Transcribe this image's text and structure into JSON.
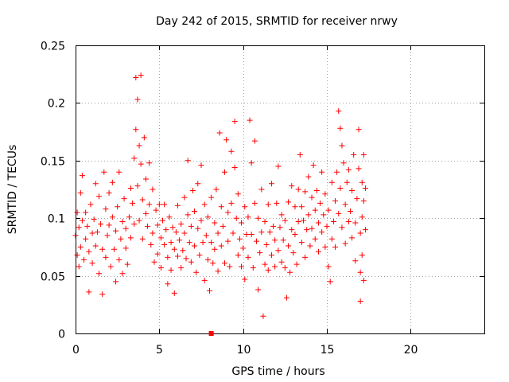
{
  "chart_data": {
    "type": "scatter",
    "title": "Day 242 of 2015, SRMTID for receiver nrwy",
    "xlabel": "GPS time / hours",
    "ylabel": "SRMTID / TECUs",
    "xlim": [
      0,
      24.4
    ],
    "ylim": [
      0,
      0.25
    ],
    "x_ticks": [
      0,
      5,
      10,
      15,
      20
    ],
    "x_tick_labels": [
      "0",
      "5",
      "10",
      "15",
      "20"
    ],
    "y_ticks": [
      0,
      0.05,
      0.1,
      0.15,
      0.2,
      0.25
    ],
    "y_tick_labels": [
      "0",
      "0.05",
      "0.1",
      "0.15",
      "0.2",
      "0.25"
    ],
    "grid": true,
    "marker": "plus",
    "series": [
      {
        "name": "SRMTID",
        "color": "#ff0000",
        "points": [
          [
            0.0,
            0.085
          ],
          [
            0.1,
            0.105
          ],
          [
            0.1,
            0.068
          ],
          [
            0.2,
            0.092
          ],
          [
            0.2,
            0.058
          ],
          [
            0.3,
            0.122
          ],
          [
            0.3,
            0.075
          ],
          [
            0.4,
            0.137
          ],
          [
            0.4,
            0.098
          ],
          [
            0.5,
            0.064
          ],
          [
            0.6,
            0.105
          ],
          [
            0.6,
            0.082
          ],
          [
            0.7,
            0.093
          ],
          [
            0.8,
            0.071
          ],
          [
            0.8,
            0.036
          ],
          [
            0.9,
            0.112
          ],
          [
            1.0,
            0.087
          ],
          [
            1.0,
            0.061
          ],
          [
            1.1,
            0.099
          ],
          [
            1.2,
            0.13
          ],
          [
            1.2,
            0.076
          ],
          [
            1.3,
            0.088
          ],
          [
            1.4,
            0.052
          ],
          [
            1.4,
            0.119
          ],
          [
            1.5,
            0.095
          ],
          [
            1.6,
            0.034
          ],
          [
            1.6,
            0.073
          ],
          [
            1.7,
            0.14
          ],
          [
            1.8,
            0.108
          ],
          [
            1.8,
            0.066
          ],
          [
            1.9,
            0.085
          ],
          [
            2.0,
            0.122
          ],
          [
            2.0,
            0.094
          ],
          [
            2.1,
            0.058
          ],
          [
            2.2,
            0.131
          ],
          [
            2.2,
            0.101
          ],
          [
            2.3,
            0.073
          ],
          [
            2.4,
            0.045
          ],
          [
            2.4,
            0.089
          ],
          [
            2.5,
            0.11
          ],
          [
            2.6,
            0.14
          ],
          [
            2.6,
            0.064
          ],
          [
            2.7,
            0.082
          ],
          [
            2.8,
            0.097
          ],
          [
            2.8,
            0.052
          ],
          [
            2.9,
            0.117
          ],
          [
            3.0,
            0.074
          ],
          [
            3.0,
            0.091
          ],
          [
            3.1,
            0.06
          ],
          [
            3.2,
            0.101
          ],
          [
            3.3,
            0.126
          ],
          [
            3.3,
            0.083
          ],
          [
            3.4,
            0.113
          ],
          [
            3.5,
            0.152
          ],
          [
            3.5,
            0.095
          ],
          [
            3.6,
            0.222
          ],
          [
            3.6,
            0.177
          ],
          [
            3.7,
            0.203
          ],
          [
            3.7,
            0.128
          ],
          [
            3.8,
            0.163
          ],
          [
            3.8,
            0.098
          ],
          [
            3.9,
            0.224
          ],
          [
            3.9,
            0.147
          ],
          [
            4.0,
            0.116
          ],
          [
            4.0,
            0.082
          ],
          [
            4.1,
            0.17
          ],
          [
            4.2,
            0.134
          ],
          [
            4.2,
            0.104
          ],
          [
            4.3,
            0.093
          ],
          [
            4.4,
            0.148
          ],
          [
            4.4,
            0.112
          ],
          [
            4.5,
            0.077
          ],
          [
            4.6,
            0.125
          ],
          [
            4.6,
            0.087
          ],
          [
            4.7,
            0.062
          ],
          [
            4.8,
            0.107
          ],
          [
            4.9,
            0.094
          ],
          [
            4.9,
            0.069
          ],
          [
            5.0,
            0.112
          ],
          [
            5.1,
            0.083
          ],
          [
            5.1,
            0.057
          ],
          [
            5.2,
            0.098
          ],
          [
            5.3,
            0.077
          ],
          [
            5.3,
            0.112
          ],
          [
            5.4,
            0.09
          ],
          [
            5.5,
            0.066
          ],
          [
            5.5,
            0.043
          ],
          [
            5.6,
            0.101
          ],
          [
            5.7,
            0.079
          ],
          [
            5.7,
            0.055
          ],
          [
            5.8,
            0.092
          ],
          [
            5.9,
            0.073
          ],
          [
            5.9,
            0.035
          ],
          [
            6.0,
            0.088
          ],
          [
            6.1,
            0.067
          ],
          [
            6.1,
            0.111
          ],
          [
            6.2,
            0.081
          ],
          [
            6.3,
            0.057
          ],
          [
            6.3,
            0.095
          ],
          [
            6.4,
            0.072
          ],
          [
            6.5,
            0.118
          ],
          [
            6.5,
            0.087
          ],
          [
            6.6,
            0.065
          ],
          [
            6.7,
            0.15
          ],
          [
            6.7,
            0.103
          ],
          [
            6.8,
            0.079
          ],
          [
            6.9,
            0.062
          ],
          [
            6.9,
            0.093
          ],
          [
            7.0,
            0.124
          ],
          [
            7.1,
            0.076
          ],
          [
            7.1,
            0.106
          ],
          [
            7.2,
            0.053
          ],
          [
            7.3,
            0.091
          ],
          [
            7.3,
            0.13
          ],
          [
            7.4,
            0.068
          ],
          [
            7.5,
            0.146
          ],
          [
            7.5,
            0.098
          ],
          [
            7.6,
            0.079
          ],
          [
            7.7,
            0.046
          ],
          [
            7.7,
            0.112
          ],
          [
            7.8,
            0.085
          ],
          [
            7.9,
            0.064
          ],
          [
            7.9,
            0.101
          ],
          [
            8.0,
            0.037
          ],
          [
            8.1,
            0.079
          ],
          [
            8.1,
            0.118
          ],
          [
            8.2,
            0.061
          ],
          [
            8.3,
            0.096
          ],
          [
            8.3,
            0.073
          ],
          [
            8.4,
            0.125
          ],
          [
            8.5,
            0.087
          ],
          [
            8.5,
            0.054
          ],
          [
            8.6,
            0.174
          ],
          [
            8.7,
            0.11
          ],
          [
            8.7,
            0.076
          ],
          [
            8.8,
            0.093
          ],
          [
            8.9,
            0.061
          ],
          [
            8.9,
            0.14
          ],
          [
            9.0,
            0.168
          ],
          [
            9.1,
            0.105
          ],
          [
            9.1,
            0.08
          ],
          [
            9.2,
            0.058
          ],
          [
            9.3,
            0.158
          ],
          [
            9.3,
            0.113
          ],
          [
            9.4,
            0.087
          ],
          [
            9.5,
            0.184
          ],
          [
            9.5,
            0.144
          ],
          [
            9.6,
            0.1
          ],
          [
            9.7,
            0.068
          ],
          [
            9.7,
            0.121
          ],
          [
            9.8,
            0.082
          ],
          [
            9.9,
            0.058
          ],
          [
            9.9,
            0.096
          ],
          [
            10.0,
            0.074
          ],
          [
            10.1,
            0.11
          ],
          [
            10.1,
            0.047
          ],
          [
            10.2,
            0.086
          ],
          [
            10.3,
            0.066
          ],
          [
            10.3,
            0.101
          ],
          [
            10.4,
            0.185
          ],
          [
            10.5,
            0.148
          ],
          [
            10.5,
            0.086
          ],
          [
            10.6,
            0.057
          ],
          [
            10.7,
            0.167
          ],
          [
            10.7,
            0.113
          ],
          [
            10.8,
            0.08
          ],
          [
            10.9,
            0.038
          ],
          [
            10.9,
            0.1
          ],
          [
            11.0,
            0.07
          ],
          [
            11.1,
            0.125
          ],
          [
            11.1,
            0.088
          ],
          [
            11.2,
            0.015
          ],
          [
            11.3,
            0.06
          ],
          [
            11.3,
            0.097
          ],
          [
            11.4,
            0.077
          ],
          [
            11.5,
            0.112
          ],
          [
            11.5,
            0.055
          ],
          [
            11.6,
            0.088
          ],
          [
            11.7,
            0.068
          ],
          [
            11.7,
            0.13
          ],
          [
            11.8,
            0.093
          ],
          [
            11.9,
            0.058
          ],
          [
            11.9,
            0.081
          ],
          [
            12.0,
            0.113
          ],
          [
            12.1,
            0.072
          ],
          [
            12.1,
            0.145
          ],
          [
            12.2,
            0.092
          ],
          [
            12.3,
            0.062
          ],
          [
            12.3,
            0.103
          ],
          [
            12.4,
            0.081
          ],
          [
            12.5,
            0.057
          ],
          [
            12.5,
            0.098
          ],
          [
            12.6,
            0.031
          ],
          [
            12.7,
            0.076
          ],
          [
            12.7,
            0.114
          ],
          [
            12.8,
            0.053
          ],
          [
            12.9,
            0.09
          ],
          [
            12.9,
            0.128
          ],
          [
            13.0,
            0.07
          ],
          [
            13.1,
            0.11
          ],
          [
            13.1,
            0.086
          ],
          [
            13.2,
            0.06
          ],
          [
            13.3,
            0.125
          ],
          [
            13.3,
            0.097
          ],
          [
            13.4,
            0.155
          ],
          [
            13.5,
            0.11
          ],
          [
            13.5,
            0.079
          ],
          [
            13.6,
            0.098
          ],
          [
            13.7,
            0.066
          ],
          [
            13.7,
            0.123
          ],
          [
            13.8,
            0.09
          ],
          [
            13.9,
            0.136
          ],
          [
            13.9,
            0.103
          ],
          [
            14.0,
            0.076
          ],
          [
            14.1,
            0.118
          ],
          [
            14.1,
            0.091
          ],
          [
            14.2,
            0.146
          ],
          [
            14.3,
            0.107
          ],
          [
            14.3,
            0.082
          ],
          [
            14.4,
            0.124
          ],
          [
            14.5,
            0.096
          ],
          [
            14.5,
            0.071
          ],
          [
            14.6,
            0.113
          ],
          [
            14.7,
            0.14
          ],
          [
            14.7,
            0.088
          ],
          [
            14.8,
            0.103
          ],
          [
            14.9,
            0.075
          ],
          [
            14.9,
            0.121
          ],
          [
            15.0,
            0.093
          ],
          [
            15.1,
            0.058
          ],
          [
            15.1,
            0.107
          ],
          [
            15.2,
            0.045
          ],
          [
            15.3,
            0.082
          ],
          [
            15.3,
            0.131
          ],
          [
            15.4,
            0.097
          ],
          [
            15.5,
            0.115
          ],
          [
            15.5,
            0.075
          ],
          [
            15.6,
            0.14
          ],
          [
            15.7,
            0.193
          ],
          [
            15.7,
            0.104
          ],
          [
            15.8,
            0.178
          ],
          [
            15.8,
            0.126
          ],
          [
            15.9,
            0.163
          ],
          [
            15.9,
            0.092
          ],
          [
            16.0,
            0.148
          ],
          [
            16.1,
            0.112
          ],
          [
            16.1,
            0.078
          ],
          [
            16.2,
            0.131
          ],
          [
            16.3,
            0.097
          ],
          [
            16.3,
            0.142
          ],
          [
            16.4,
            0.106
          ],
          [
            16.5,
            0.083
          ],
          [
            16.5,
            0.124
          ],
          [
            16.6,
            0.155
          ],
          [
            16.7,
            0.096
          ],
          [
            16.7,
            0.063
          ],
          [
            16.8,
            0.117
          ],
          [
            16.9,
            0.177
          ],
          [
            16.9,
            0.143
          ],
          [
            17.0,
            0.087
          ],
          [
            17.0,
            0.053
          ],
          [
            17.0,
            0.028
          ],
          [
            17.1,
            0.131
          ],
          [
            17.1,
            0.101
          ],
          [
            17.1,
            0.068
          ],
          [
            17.2,
            0.155
          ],
          [
            17.2,
            0.115
          ],
          [
            17.2,
            0.046
          ],
          [
            17.3,
            0.126
          ],
          [
            17.3,
            0.09
          ]
        ]
      }
    ],
    "annotations": [
      {
        "type": "marker",
        "x": 8.1,
        "y": 0.0,
        "shape": "square"
      }
    ]
  }
}
